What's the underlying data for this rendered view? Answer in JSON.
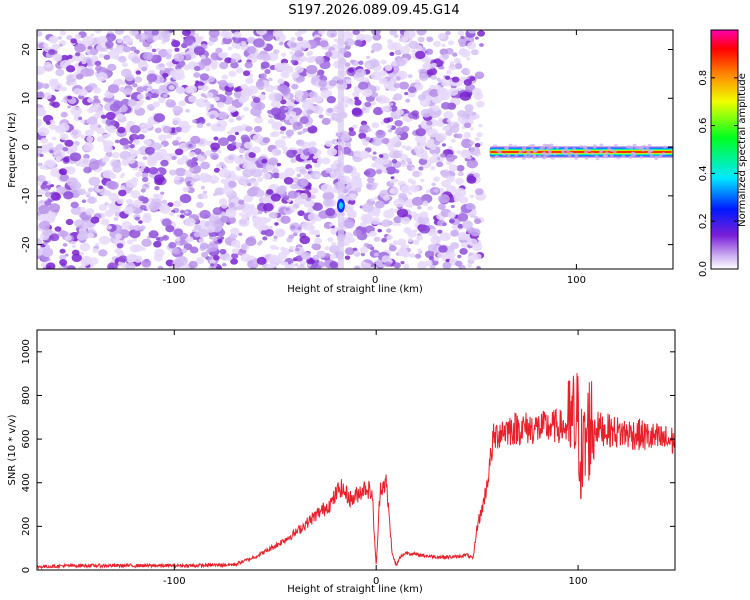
{
  "title": "S197.2026.089.09.45.G14",
  "chart_data": [
    {
      "type": "heatmap",
      "xlabel": "Height of straight line (km)",
      "ylabel": "Frequency (Hz)",
      "xlim": [
        -168,
        148
      ],
      "ylim": [
        -25,
        24
      ],
      "xticks": [
        -100,
        0,
        100
      ],
      "yticks": [
        -20,
        -10,
        0,
        10,
        20
      ],
      "colorbar": {
        "label": "Normalized spectral amplitude",
        "range": [
          0,
          1
        ],
        "ticks": [
          0.0,
          0.2,
          0.4,
          0.6,
          0.8
        ]
      },
      "features": [
        {
          "kind": "noise",
          "x_range": [
            -168,
            53
          ],
          "y_range": [
            -25,
            24
          ],
          "amplitude": 0.05
        },
        {
          "kind": "line",
          "x_range": [
            57,
            149
          ],
          "frequency": -1,
          "amplitude": 0.95
        },
        {
          "kind": "spike",
          "x": -17,
          "frequency": -12,
          "amplitude": 0.35
        }
      ]
    },
    {
      "type": "line",
      "xlabel": "Height of straight line (km)",
      "ylabel": "SNR (10 * v/v)",
      "xlim": [
        -168,
        148
      ],
      "ylim": [
        0,
        1100
      ],
      "xticks": [
        -100,
        0,
        100
      ],
      "yticks": [
        0,
        200,
        400,
        600,
        800,
        1000
      ],
      "series": [
        {
          "color": "#e8202a",
          "x": [
            -168,
            -150,
            -120,
            -90,
            -70,
            -60,
            -50,
            -40,
            -30,
            -22,
            -18,
            -12,
            -8,
            -5,
            -2,
            0,
            2,
            5,
            8,
            10,
            12,
            15,
            20,
            30,
            40,
            45,
            48,
            50,
            53,
            55,
            58,
            62,
            70,
            80,
            90,
            95,
            100,
            102,
            104,
            106,
            110,
            120,
            130,
            140,
            148
          ],
          "y": [
            15,
            20,
            20,
            20,
            25,
            60,
            110,
            170,
            250,
            310,
            380,
            320,
            360,
            380,
            350,
            10,
            380,
            400,
            70,
            20,
            60,
            80,
            70,
            60,
            60,
            70,
            50,
            200,
            300,
            400,
            600,
            640,
            650,
            650,
            660,
            650,
            680,
            480,
            600,
            670,
            650,
            630,
            620,
            600,
            590
          ]
        }
      ]
    }
  ]
}
